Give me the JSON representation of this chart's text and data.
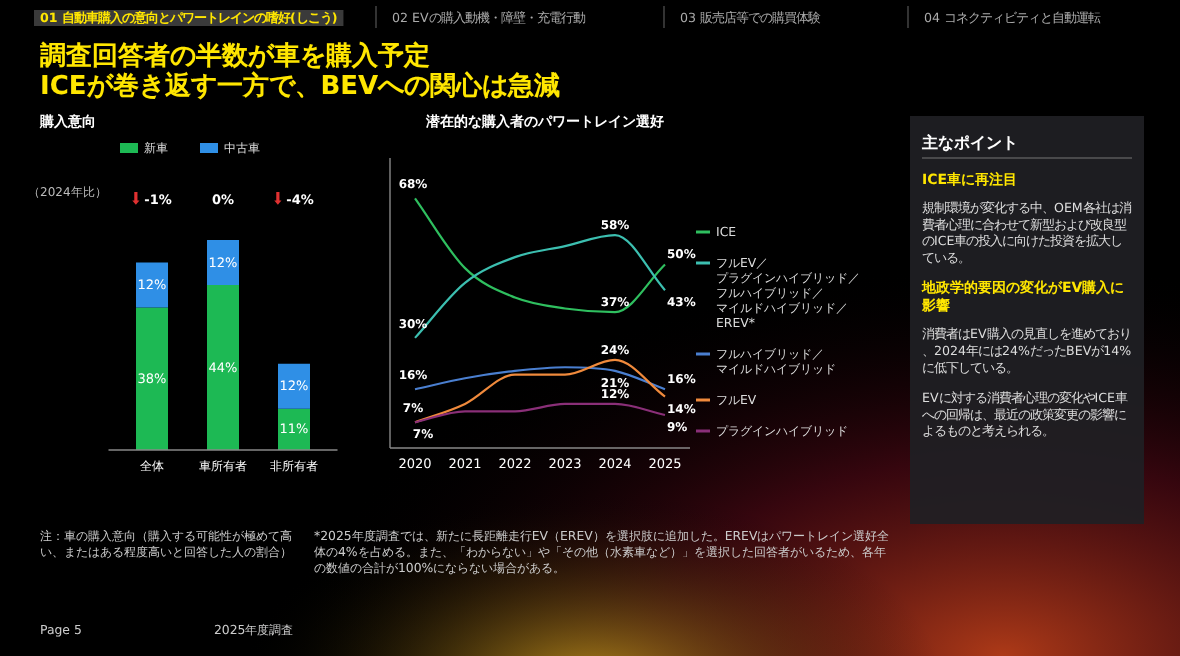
{
  "chart_data": [
    {
      "type": "other",
      "title": "調査回答者の半数が車を購入予定\nICEが巻き返す一方で、BEVへの関心は急減",
      "annotations": [
        "01 自動車購入の意向とパワートレインの嗜好(しこう)",
        "02 EVの購入動機・障壁・充電行動",
        "03 販売店等での購買体験",
        "04 コネクティビティと自動運転",
        "Page 5",
        "2025年度調査"
      ]
    },
    {
      "type": "bar",
      "title": "購入意向",
      "categories": [
        "全体",
        "車所有者",
        "非所有者"
      ],
      "stacked": true,
      "legend": "top",
      "series": [
        {
          "name": "新車",
          "color": "#1db954",
          "values": [
            38,
            44,
            11
          ],
          "value_labels": [
            "38%",
            "44%",
            "11%"
          ]
        },
        {
          "name": "中古車",
          "color": "#2f8fe6",
          "values": [
            12,
            12,
            12
          ],
          "value_labels": [
            "12%",
            "12%",
            "12%"
          ]
        }
      ],
      "annotations": [
        "（2024年比）",
        "-1%",
        "0%",
        "-4%",
        "注：車の購入意向（購入する可能性が極めて高い、またはある程度高いと回答した人の割合）"
      ]
    },
    {
      "type": "line",
      "title": "潜在的な購入者のパワートレイン選好",
      "x": [
        2020,
        2021,
        2022,
        2023,
        2024,
        2025
      ],
      "xlim": [
        2019.5,
        2025.5
      ],
      "xticks": [
        2020,
        2021,
        2022,
        2023,
        2024,
        2025
      ],
      "ylim": [
        0,
        79
      ],
      "tick_labels": "x",
      "legend": "right",
      "series": [
        {
          "name": "ICE",
          "color": "#2fbf5f",
          "values": [
            68,
            49,
            41,
            38,
            37,
            50
          ],
          "value_labels": [
            "68%",
            null,
            null,
            null,
            "37%",
            "50%"
          ]
        },
        {
          "name": "フルEV／プラグインハイブリッド／フルハイブリッド／マイルドハイブリッド／EREV*",
          "color": "#3cbfb0",
          "values": [
            30,
            45,
            52,
            55,
            58,
            43
          ],
          "value_labels": [
            "30%",
            null,
            null,
            null,
            "58%",
            "43%"
          ]
        },
        {
          "name": "フルハイブリッド／マイルドハイブリッド",
          "color": "#4a7fd0",
          "values": [
            16,
            19,
            21,
            22,
            21,
            16
          ],
          "value_labels": [
            "16%",
            null,
            null,
            null,
            "21%",
            "16%"
          ]
        },
        {
          "name": "フルEV",
          "color": "#f08a3c",
          "values": [
            7,
            12,
            20,
            20,
            24,
            14
          ],
          "value_labels": [
            "7%",
            null,
            null,
            null,
            "24%",
            "14%"
          ]
        },
        {
          "name": "プラグインハイブリッド",
          "color": "#8a2f78",
          "values": [
            7,
            10,
            10,
            12,
            12,
            9
          ],
          "value_labels": [
            "7%",
            null,
            null,
            null,
            "12%",
            "9%"
          ]
        }
      ],
      "annotations": [
        "*2025年度調査では、新たに長距離走行EV（EREV）を選択肢に追加した。EREVはパワートレイン選好全体の4%を占める。また、「わからない」や「その他（水素車など）」を選択した回答者がいるため、各年の数値の合計が100%にならない場合がある。"
      ]
    },
    {
      "type": "other",
      "title": "主なポイント",
      "annotations": [
        "ICE車に再注目",
        "規制環境が変化する中、OEM各社は消費者心理に合わせて新型および改良型のICE車の投入に向けた投資を拡大している。",
        "地政学的要因の変化がEV購入に影響",
        "消費者はEV購入の見直しを進めており、2024年には24%だったBEVが14%に低下している。",
        "EVに対する消費者心理の変化やICE車への回帰は、最近の政策変更の影響によるものと考えられる。"
      ]
    }
  ]
}
